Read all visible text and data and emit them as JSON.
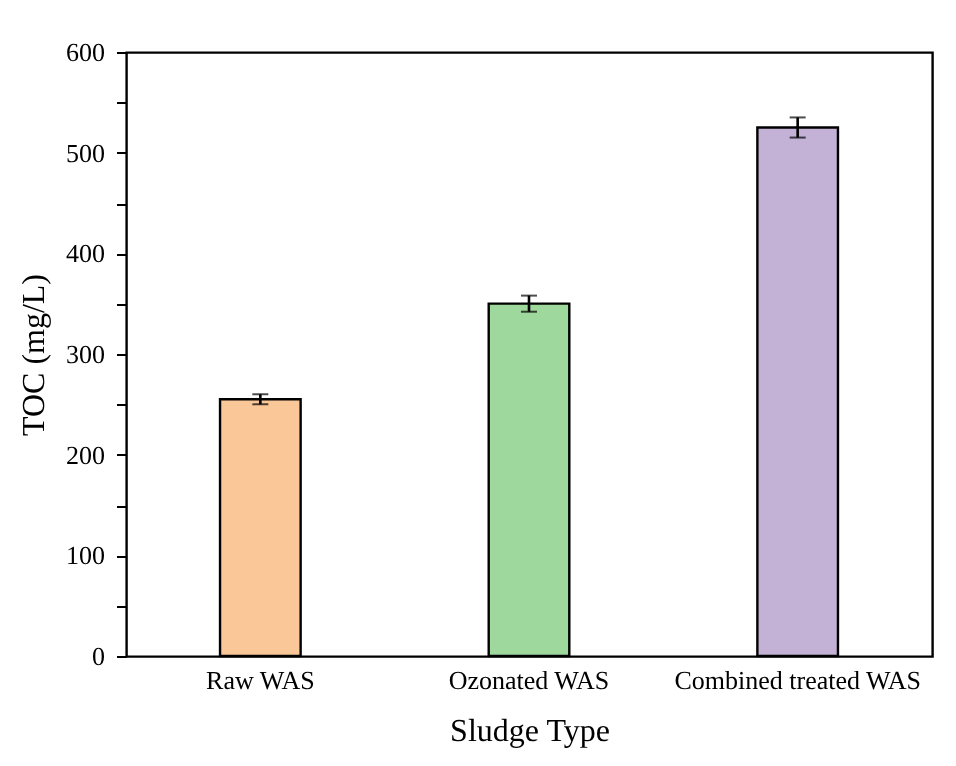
{
  "chart_data": {
    "type": "bar",
    "xlabel": "Sludge Type",
    "ylabel": "TOC (mg/L)",
    "categories": [
      "Raw WAS",
      "Ozonated WAS",
      "Combined treated WAS"
    ],
    "values": [
      255,
      350,
      525
    ],
    "errors": [
      5,
      8,
      10
    ],
    "colors": [
      "#fac898",
      "#9fd89d",
      "#c3b1d6"
    ],
    "ylim": [
      0,
      600
    ],
    "yticks": [
      0,
      {
        "value": 50,
        "label": null
      },
      100,
      {
        "value": 150,
        "label": null
      },
      200,
      {
        "value": 250,
        "label": null
      },
      300,
      {
        "value": 350,
        "label": null
      },
      400,
      {
        "value": 450,
        "label": null
      },
      500,
      {
        "value": 550,
        "label": null
      },
      600
    ],
    "grid": false
  }
}
